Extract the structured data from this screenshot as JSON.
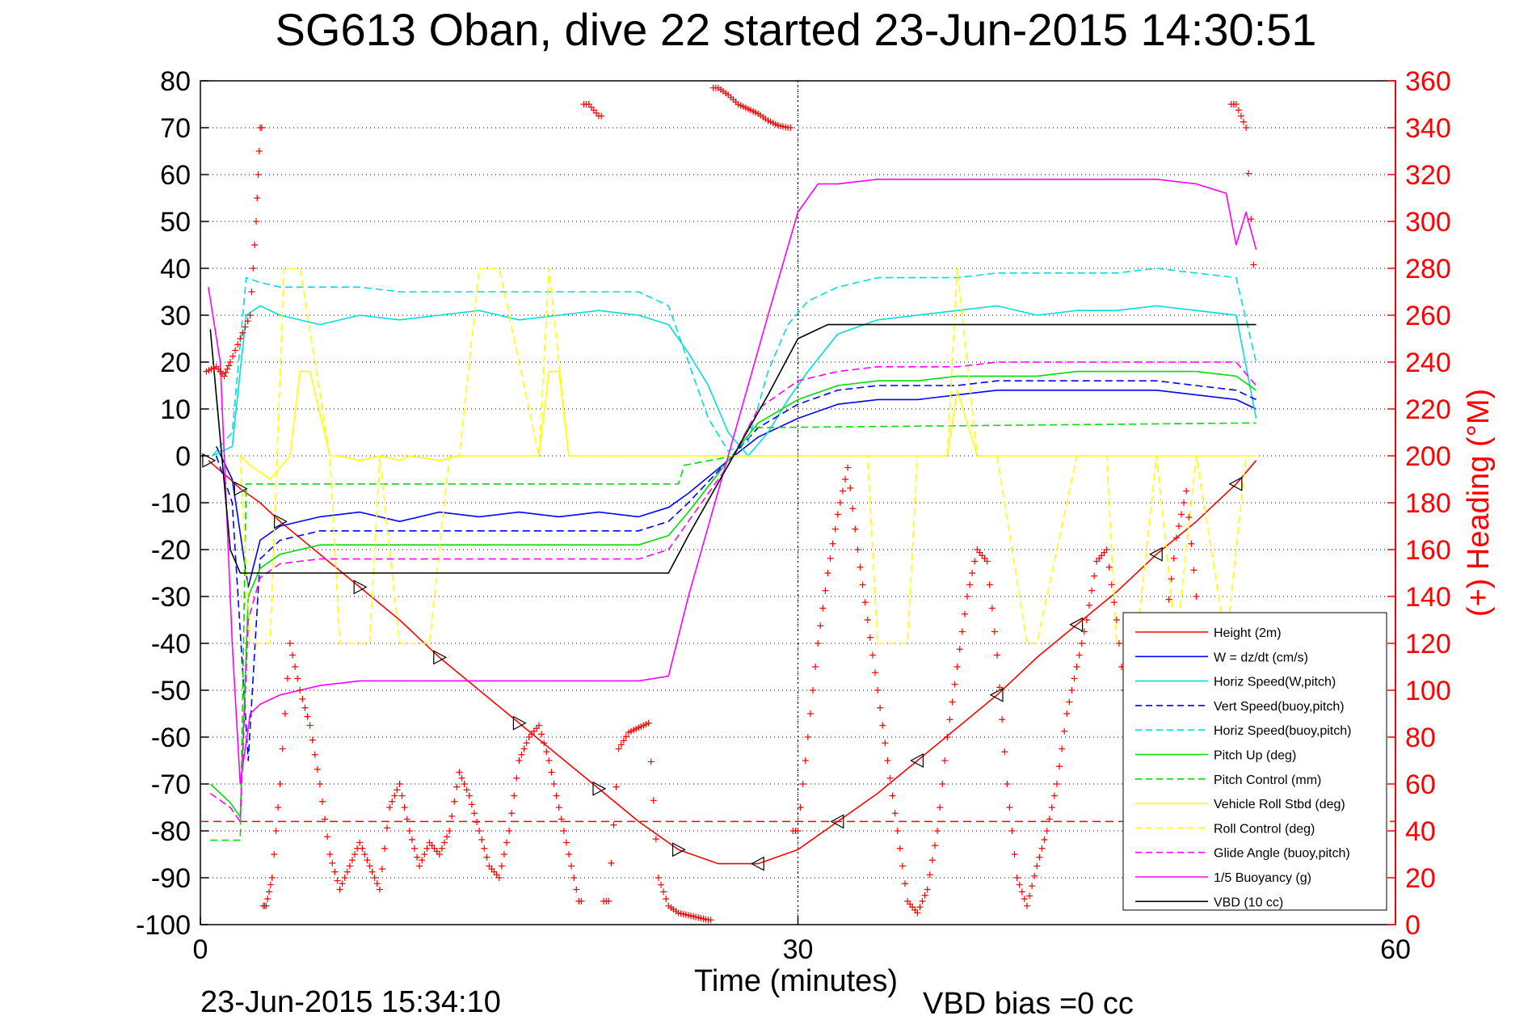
{
  "chart_data": {
    "type": "line",
    "title": "SG613 Oban, dive 22 started 23-Jun-2015 14:30:51",
    "xlabel": "Time (minutes)",
    "ylabel": "",
    "y2label": "(+) Heading (°M)",
    "xlim": [
      0,
      60
    ],
    "ylim": [
      -100,
      80
    ],
    "y2lim": [
      0,
      360
    ],
    "grid": "dotted",
    "legend_position": "bottom-right",
    "x_ticks": [
      "0",
      "30",
      "60"
    ],
    "y_ticks": [
      "80",
      "70",
      "60",
      "50",
      "40",
      "30",
      "20",
      "10",
      "0",
      "-10",
      "-20",
      "-30",
      "-40",
      "-50",
      "-60",
      "-70",
      "-80",
      "-90",
      "-100"
    ],
    "y2_ticks": [
      "360",
      "340",
      "320",
      "300",
      "280",
      "260",
      "240",
      "220",
      "200",
      "180",
      "160",
      "140",
      "120",
      "100",
      "80",
      "60",
      "40",
      "20",
      "0"
    ],
    "footer_left": "23-Jun-2015 15:34:10",
    "footer_right": "VBD bias =0 cc",
    "series": [
      {
        "name": "Height (2m)",
        "color": "#ff0000",
        "dash": "solid",
        "x": [
          0.4,
          1.5,
          2.0,
          3.0,
          4.0,
          6.0,
          8.0,
          10.0,
          12.0,
          14.0,
          16.0,
          18.0,
          20.0,
          22.0,
          24.0,
          26.0,
          28.0,
          30.0,
          32.0,
          34.0,
          36.0,
          38.0,
          40.0,
          42.0,
          44.0,
          46.0,
          48.0,
          50.0,
          52.0,
          53.0
        ],
        "y": [
          -1,
          -5,
          -7,
          -10,
          -14,
          -21,
          -28,
          -35,
          -43,
          -50,
          -57,
          -64,
          -71,
          -78,
          -84,
          -87,
          -87,
          -84,
          -78,
          -72,
          -65,
          -58,
          -51,
          -43,
          -36,
          -29,
          -21,
          -14,
          -6,
          -1
        ]
      },
      {
        "name": "W = dz/dt (cm/s)",
        "color": "#0000ff",
        "dash": "solid",
        "x": [
          0.8,
          1.6,
          2.4,
          3.0,
          4.0,
          6.0,
          8.0,
          10.0,
          12.0,
          14.0,
          16.0,
          18.0,
          20.0,
          22.0,
          23.5,
          24.5,
          26.5,
          28.0,
          30.0,
          32.0,
          34.0,
          36.0,
          38.0,
          40.0,
          42.0,
          44.0,
          46.0,
          48.0,
          50.0,
          52.0,
          53.0
        ],
        "y": [
          2,
          -5,
          -28,
          -18,
          -15,
          -13,
          -12,
          -14,
          -12,
          -13,
          -12,
          -13,
          -12,
          -13,
          -11,
          -8,
          -1,
          4,
          8,
          11,
          12,
          12,
          13,
          14,
          14,
          14,
          14,
          14,
          13,
          12,
          10
        ]
      },
      {
        "name": "Horiz Speed(W,pitch)",
        "color": "#00dddd",
        "dash": "solid",
        "x": [
          0.6,
          1.6,
          2.3,
          3.0,
          4.0,
          6.0,
          8.0,
          10.0,
          12.0,
          14.0,
          16.0,
          18.0,
          20.0,
          22.0,
          23.5,
          24.5,
          25.5,
          26.5,
          27.5,
          28.5,
          29.5,
          30.5,
          32.0,
          34.0,
          36.0,
          38.0,
          40.0,
          42.0,
          44.0,
          46.0,
          48.0,
          50.0,
          52.0,
          53.0
        ],
        "y": [
          0,
          2,
          30,
          32,
          30,
          28,
          30,
          29,
          30,
          31,
          29,
          30,
          31,
          30,
          28,
          22,
          15,
          5,
          0,
          5,
          12,
          18,
          26,
          29,
          30,
          31,
          32,
          30,
          31,
          31,
          32,
          31,
          30,
          8
        ]
      },
      {
        "name": "Vert Speed(buoy,pitch)",
        "color": "#0000ff",
        "dash": "dashed",
        "x": [
          0.8,
          1.6,
          2.4,
          3.0,
          4.0,
          6.0,
          8.0,
          10.0,
          12.0,
          14.0,
          16.0,
          18.0,
          20.0,
          22.0,
          23.5,
          24.5,
          26.5,
          28.0,
          30.0,
          32.0,
          34.0,
          36.0,
          38.0,
          40.0,
          42.0,
          44.0,
          46.0,
          48.0,
          50.0,
          52.0,
          53.0
        ],
        "y": [
          0,
          -10,
          -65,
          -22,
          -18,
          -16,
          -16,
          -16,
          -16,
          -16,
          -16,
          -16,
          -16,
          -16,
          -14,
          -10,
          -1,
          6,
          11,
          14,
          15,
          15,
          15,
          16,
          16,
          16,
          16,
          16,
          15,
          14,
          12
        ]
      },
      {
        "name": "Horiz Speed(buoy,pitch)",
        "color": "#00dddd",
        "dash": "dashed",
        "x": [
          0.6,
          1.6,
          2.3,
          3.0,
          4.0,
          6.0,
          8.0,
          10.0,
          12.0,
          14.0,
          16.0,
          18.0,
          20.0,
          22.0,
          23.5,
          24.5,
          25.5,
          26.5,
          27.5,
          28.5,
          29.5,
          30.5,
          32.0,
          34.0,
          36.0,
          38.0,
          40.0,
          42.0,
          44.0,
          46.0,
          48.0,
          50.0,
          52.0,
          53.0
        ],
        "y": [
          0,
          5,
          38,
          37,
          36,
          36,
          36,
          35,
          35,
          35,
          35,
          35,
          35,
          35,
          32,
          20,
          8,
          1,
          3,
          18,
          28,
          33,
          36,
          38,
          38,
          38,
          39,
          39,
          39,
          39,
          40,
          39,
          38,
          20
        ]
      },
      {
        "name": "Pitch Up (deg)",
        "color": "#00dd00",
        "dash": "solid",
        "x": [
          0.5,
          1.5,
          2.0,
          2.4,
          3.0,
          4.0,
          6.0,
          8.0,
          10.0,
          12.0,
          14.0,
          16.0,
          18.0,
          20.0,
          22.0,
          23.5,
          24.5,
          26.5,
          28.0,
          30.0,
          32.0,
          34.0,
          36.0,
          38.0,
          40.0,
          42.0,
          44.0,
          46.0,
          48.0,
          50.0,
          52.0,
          53.0
        ],
        "y": [
          -70,
          -74,
          -77,
          -30,
          -24,
          -21,
          -19,
          -19,
          -19,
          -19,
          -19,
          -19,
          -19,
          -19,
          -19,
          -17,
          -12,
          -1,
          7,
          12,
          15,
          16,
          16,
          17,
          17,
          17,
          18,
          18,
          18,
          18,
          17,
          14
        ]
      },
      {
        "name": "Pitch Control (mm)",
        "color": "#00dd00",
        "dash": "dashed",
        "x": [
          0.5,
          1.6,
          2.0,
          2.3,
          24.0,
          24.3,
          26.8,
          27.5,
          52.5,
          53.0
        ],
        "y": [
          -82,
          -82,
          -82,
          -6,
          -6,
          -2,
          0,
          6,
          7,
          7
        ]
      },
      {
        "name": "Vehicle Roll Stbd (deg)",
        "color": "#ffff00",
        "dash": "solid",
        "x": [
          2.0,
          2.5,
          3.5,
          4.5,
          5.0,
          5.5,
          6.5,
          7.0,
          8.0,
          9.0,
          10.0,
          10.5,
          12.0,
          13.0,
          13.5,
          15.0,
          17.0,
          17.5,
          18.0,
          18.5,
          20.0,
          21.0,
          22.0,
          23.0,
          24.0,
          26.0,
          28.0,
          30.0,
          32.0,
          33.5,
          34.0,
          36.0,
          37.5,
          38.0,
          39.0,
          40.0,
          40.5,
          42.0,
          44.0,
          45.0,
          46.0,
          47.0,
          48.0,
          49.0,
          50.0,
          51.5,
          52.5,
          53.0
        ],
        "y": [
          0,
          -2,
          -5,
          0,
          18,
          18,
          0,
          0,
          -1,
          0,
          -1,
          0,
          -1,
          0,
          0,
          0,
          0,
          18,
          18,
          0,
          0,
          0,
          0,
          0,
          0,
          0,
          0,
          0,
          0,
          0,
          0,
          0,
          0,
          14,
          0,
          0,
          0,
          0,
          0,
          0,
          0,
          0,
          0,
          0,
          0,
          0,
          0,
          0
        ]
      },
      {
        "name": "Roll Control (deg)",
        "color": "#ffff00",
        "dash": "dashed",
        "x": [
          2.0,
          2.5,
          3.5,
          4.2,
          5.0,
          6.5,
          7.0,
          8.5,
          9.0,
          10.0,
          11.5,
          12.5,
          13.0,
          14.0,
          15.0,
          17.0,
          17.5,
          18.5,
          20.0,
          21.0,
          22.0,
          23.0,
          24.0,
          26.0,
          28.0,
          30.0,
          32.0,
          33.5,
          34.0,
          35.5,
          36.0,
          37.5,
          38.0,
          39.0,
          40.0,
          41.5,
          42.0,
          44.0,
          45.5,
          46.0,
          47.0,
          48.0,
          49.0,
          50.0,
          51.5,
          52.5,
          53.0
        ],
        "y": [
          0,
          -40,
          -40,
          40,
          40,
          0,
          -40,
          -40,
          0,
          -40,
          -40,
          0,
          0,
          40,
          40,
          0,
          40,
          0,
          0,
          0,
          0,
          0,
          0,
          0,
          0,
          0,
          0,
          0,
          -40,
          -40,
          0,
          0,
          40,
          0,
          0,
          -40,
          -40,
          0,
          0,
          -40,
          -40,
          0,
          -40,
          0,
          -40,
          0,
          0
        ]
      },
      {
        "name": "Glide Angle (buoy,pitch)",
        "color": "#ff00ff",
        "dash": "dashed",
        "x": [
          0.5,
          1.5,
          2.0,
          2.4,
          3.0,
          4.0,
          6.0,
          8.0,
          10.0,
          12.0,
          14.0,
          16.0,
          18.0,
          20.0,
          22.0,
          23.5,
          24.5,
          26.5,
          28.0,
          30.0,
          32.0,
          34.0,
          36.0,
          38.0,
          40.0,
          42.0,
          44.0,
          46.0,
          48.0,
          50.0,
          52.0,
          53.0
        ],
        "y": [
          -72,
          -75,
          -78,
          -35,
          -26,
          -23,
          -22,
          -22,
          -22,
          -22,
          -22,
          -22,
          -22,
          -22,
          -22,
          -20,
          -14,
          -2,
          10,
          16,
          18,
          19,
          19,
          19,
          20,
          20,
          20,
          20,
          20,
          20,
          20,
          15
        ]
      },
      {
        "name": "1/5 Buoyancy (g)",
        "color": "#ff00ff",
        "dash": "solid",
        "x": [
          0.4,
          1.0,
          1.6,
          2.0,
          2.5,
          3.0,
          4.0,
          6.0,
          8.0,
          10.0,
          12.0,
          14.0,
          16.0,
          18.0,
          20.0,
          22.0,
          23.5,
          24.5,
          26.5,
          28.5,
          30.0,
          31.0,
          32.0,
          34.0,
          36.0,
          38.0,
          40.0,
          42.0,
          44.0,
          46.0,
          48.0,
          50.0,
          51.5,
          52.0,
          52.5,
          53.0
        ],
        "y": [
          36,
          20,
          -40,
          -70,
          -55,
          -53,
          -51,
          -49,
          -48,
          -48,
          -48,
          -48,
          -48,
          -48,
          -48,
          -48,
          -47,
          -30,
          0,
          30,
          52,
          58,
          58,
          59,
          59,
          59,
          59,
          59,
          59,
          59,
          59,
          58,
          56,
          45,
          52,
          44
        ]
      },
      {
        "name": "VBD (10 cc)",
        "color": "#000000",
        "dash": "solid",
        "x": [
          0.5,
          1.5,
          2.0,
          2.3,
          23.5,
          24.5,
          26.5,
          28.5,
          30.0,
          31.0,
          31.5,
          53.0
        ],
        "y": [
          27,
          -20,
          -25,
          -25,
          -25,
          -17,
          -2,
          13,
          25,
          27,
          28,
          28
        ]
      }
    ],
    "heading_series": {
      "name": "Heading",
      "color": "#ff0000",
      "marker": "+",
      "x": [
        0.3,
        0.8,
        1.2,
        1.5,
        2.0,
        2.5,
        2.8,
        3.0,
        3.3,
        3.6,
        4.0,
        4.5,
        5.0,
        5.5,
        6.0,
        6.5,
        7.0,
        7.5,
        8.0,
        8.5,
        9.0,
        9.5,
        10.0,
        10.5,
        11.0,
        11.5,
        12.0,
        12.5,
        13.0,
        13.5,
        14.0,
        14.5,
        15.0,
        15.5,
        16.0,
        16.5,
        17.0,
        17.5,
        18.0,
        18.5,
        19.0,
        19.5,
        20.0,
        20.5,
        21.0,
        21.5,
        22.0,
        22.5,
        23.0,
        23.5,
        24.0,
        24.5,
        25.0,
        25.5,
        26.0,
        26.5,
        27.0,
        27.5,
        28.0,
        28.5,
        29.0,
        29.5,
        30.0,
        30.5,
        31.0,
        31.5,
        32.0,
        32.5,
        33.0,
        33.5,
        34.0,
        34.5,
        35.0,
        35.5,
        36.0,
        36.5,
        37.0,
        37.5,
        38.0,
        38.5,
        39.0,
        39.5,
        40.0,
        40.5,
        41.0,
        41.5,
        42.0,
        42.5,
        43.0,
        43.5,
        44.0,
        44.5,
        45.0,
        45.5,
        46.0,
        46.5,
        47.0,
        47.5,
        48.0,
        48.5,
        49.0,
        49.5,
        50.0,
        50.5,
        51.0,
        51.5,
        52.0,
        52.5,
        53.0
      ],
      "y": [
        236,
        238,
        234,
        240,
        250,
        260,
        300,
        340,
        8,
        20,
        60,
        120,
        100,
        85,
        60,
        30,
        15,
        25,
        35,
        25,
        15,
        50,
        60,
        40,
        25,
        35,
        30,
        40,
        65,
        55,
        40,
        25,
        20,
        40,
        70,
        80,
        85,
        70,
        50,
        30,
        10,
        350,
        345,
        10,
        75,
        82,
        84,
        86,
        20,
        8,
        5,
        4,
        3,
        2,
        357,
        354,
        350,
        348,
        346,
        343,
        341,
        340,
        40,
        80,
        120,
        150,
        175,
        195,
        160,
        130,
        100,
        70,
        40,
        10,
        5,
        15,
        40,
        80,
        110,
        140,
        160,
        155,
        115,
        60,
        20,
        8,
        25,
        40,
        60,
        90,
        110,
        130,
        155,
        160,
        130,
        90,
        60,
        50,
        80,
        130,
        165,
        185,
        140,
        80,
        40,
        10,
        350,
        340,
        262
      ]
    },
    "reference_lines": [
      {
        "type": "horizontal",
        "y": -78,
        "color": "#ff0000",
        "dash": "dashed"
      },
      {
        "type": "vertical",
        "x": 30,
        "color": "#000000",
        "dash": "dotted"
      }
    ]
  }
}
